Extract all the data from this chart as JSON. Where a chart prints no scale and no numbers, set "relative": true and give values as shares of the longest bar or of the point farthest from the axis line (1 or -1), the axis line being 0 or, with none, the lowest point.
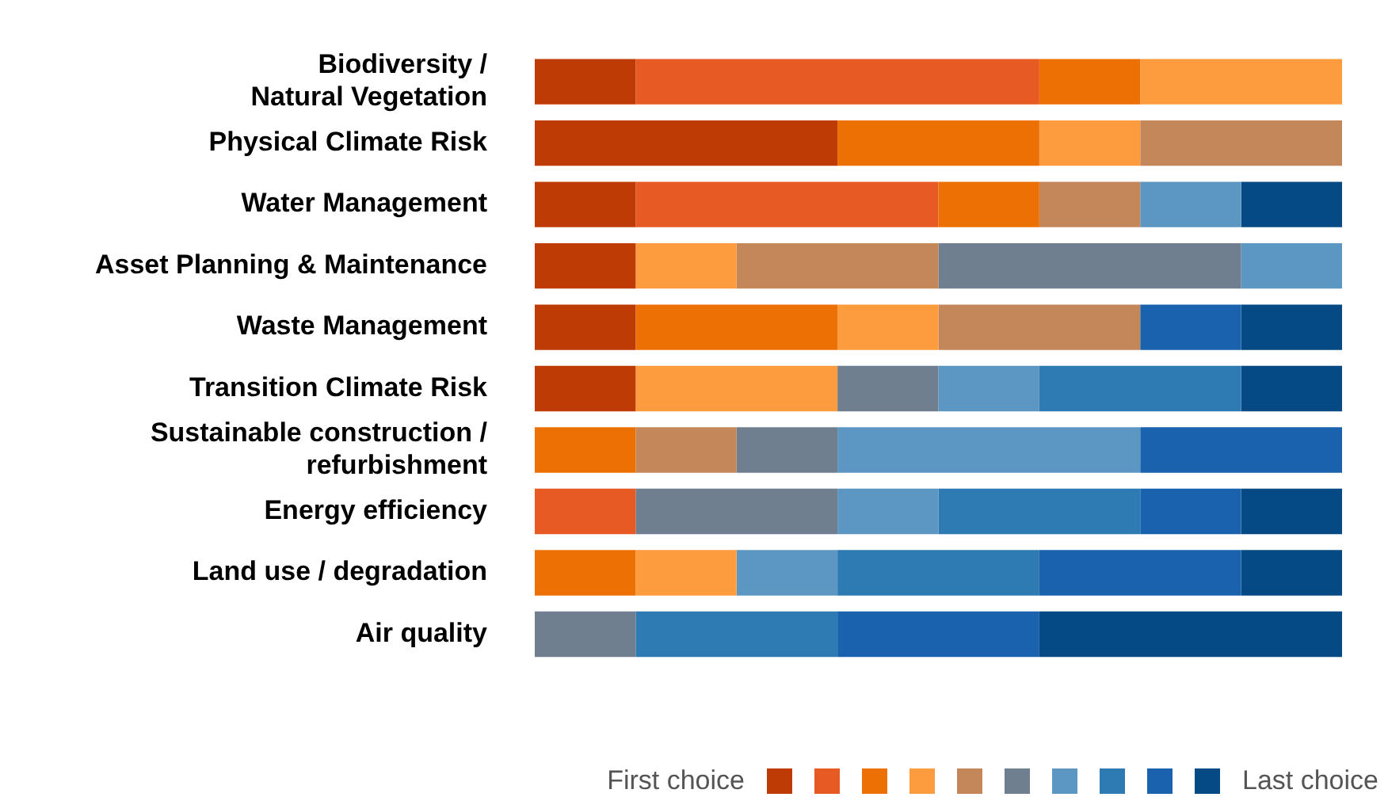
{
  "chart_data": {
    "type": "bar",
    "orientation": "horizontal",
    "stacked": true,
    "relative": true,
    "legend": "bottom right",
    "annotations": [
      "First choice"
    ],
    "categories": [
      "Biodiversity /\nNatural Vegetation",
      "Physical Climate Risk",
      "Water Management",
      "Asset Planning & Maintenance",
      "Waste Management",
      "Transition Climate Risk",
      "Sustainable construction /\nrefurbishment",
      "Energy efficiency",
      "Land use / degradation",
      "Air quality"
    ],
    "series": [
      {
        "color": "#bf3b05",
        "values": [
          0.125,
          0.375,
          0.125,
          0.125,
          0.125,
          0.125,
          null,
          null,
          null,
          null
        ]
      },
      {
        "color": "#e85a24",
        "values": [
          0.5,
          null,
          0.375,
          null,
          null,
          null,
          null,
          0.125,
          null,
          null
        ]
      },
      {
        "color": "#ec7004",
        "values": [
          0.125,
          0.25,
          0.125,
          null,
          0.25,
          null,
          0.125,
          null,
          0.125,
          null
        ]
      },
      {
        "color": "#fd9b3f",
        "values": [
          0.25,
          0.125,
          null,
          0.125,
          0.125,
          0.25,
          null,
          null,
          0.125,
          null
        ]
      },
      {
        "color": "#c4875a",
        "values": [
          null,
          0.25,
          0.125,
          0.25,
          0.25,
          null,
          0.125,
          null,
          null,
          null
        ]
      },
      {
        "color": "#6f7f8f",
        "values": [
          null,
          null,
          null,
          0.375,
          null,
          0.125,
          0.125,
          0.25,
          null,
          0.125
        ]
      },
      {
        "color": "#5b97c2",
        "values": [
          null,
          null,
          0.125,
          0.125,
          null,
          0.125,
          0.375,
          0.125,
          0.125,
          null
        ]
      },
      {
        "color": "#2e7ab3",
        "values": [
          null,
          null,
          null,
          null,
          null,
          0.25,
          null,
          0.25,
          0.25,
          0.25
        ]
      },
      {
        "color": "#1a62ae",
        "values": [
          null,
          null,
          null,
          null,
          0.125,
          null,
          0.25,
          0.125,
          0.25,
          0.25
        ]
      },
      {
        "name": "Last choice",
        "color": "#054a85",
        "values": [
          null,
          null,
          0.125,
          null,
          0.125,
          0.125,
          null,
          0.125,
          0.125,
          0.375
        ]
      }
    ]
  }
}
